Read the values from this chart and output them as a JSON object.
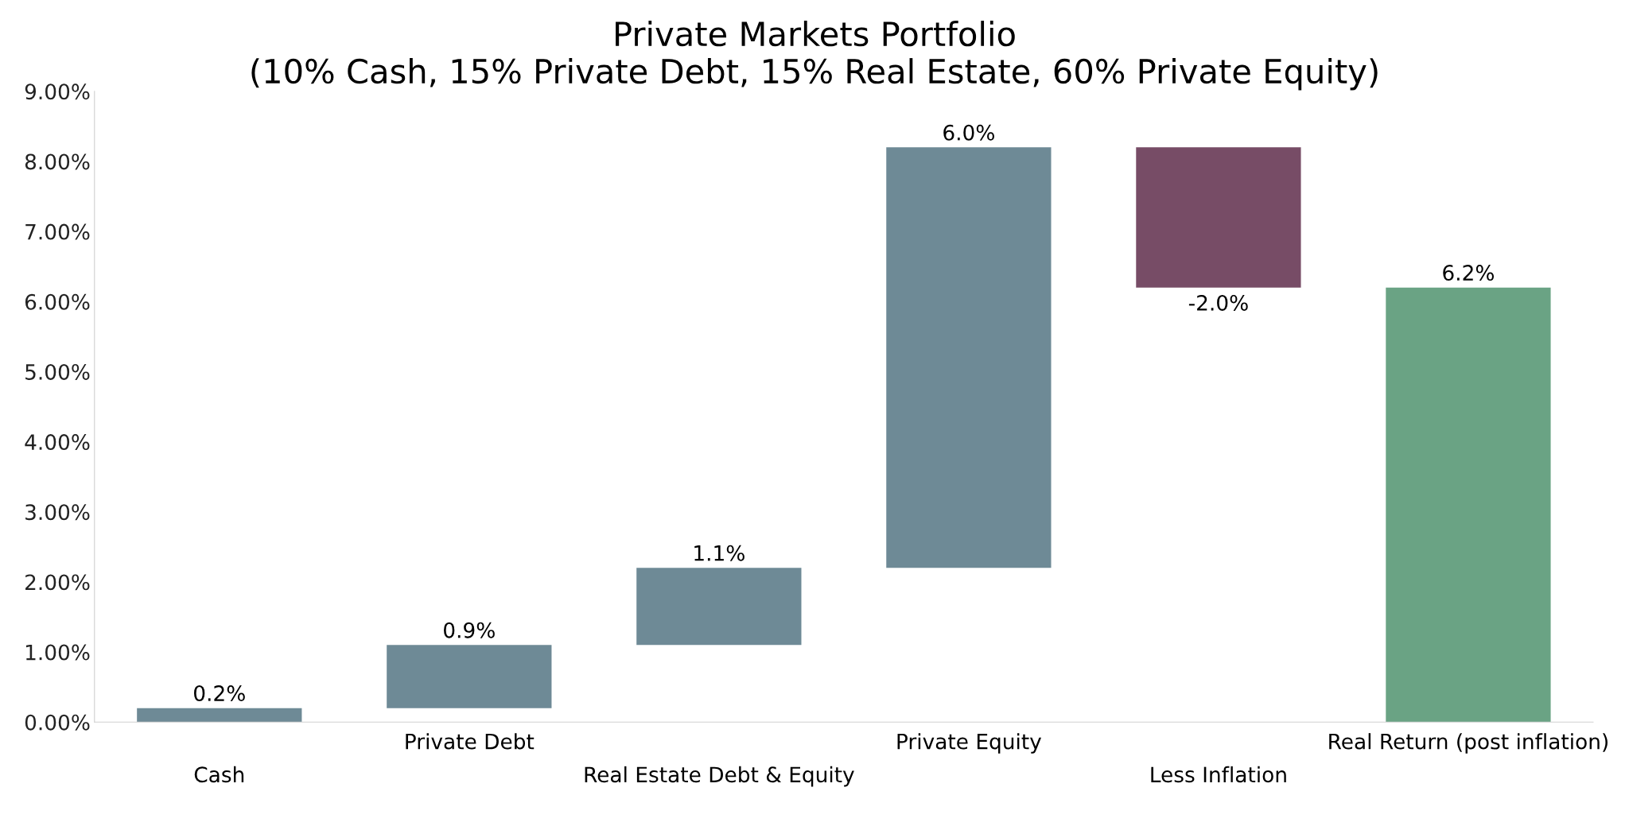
{
  "chart_data": {
    "type": "bar",
    "title": "Private Markets Portfolio",
    "subtitle": "(10% Cash, 15% Private Debt, 15% Real Estate, 60% Private Equity)",
    "categories": [
      "Cash",
      "Private Debt",
      "Real Estate Debt & Equity",
      "Private Equity",
      "Less Inflation",
      "Real Return (post inflation)"
    ],
    "values": [
      0.2,
      0.9,
      1.1,
      6.0,
      -2.0,
      6.2
    ],
    "base": [
      0,
      0.2,
      1.1,
      2.2,
      8.2,
      0
    ],
    "colors": [
      "#6e8a96",
      "#6e8a96",
      "#6e8a96",
      "#6e8a96",
      "#774c66",
      "#6aa384"
    ],
    "value_labels": [
      "0.2%",
      "0.9%",
      "1.1%",
      "6.0%",
      "-2.0%",
      "6.2%"
    ],
    "ylim": [
      0,
      9
    ],
    "yticks": [
      {
        "value": 0,
        "label": "0.00%"
      },
      {
        "value": 1,
        "label": "1.00%"
      },
      {
        "value": 2,
        "label": "2.00%"
      },
      {
        "value": 3,
        "label": "3.00%"
      },
      {
        "value": 4,
        "label": "4.00%"
      },
      {
        "value": 5,
        "label": "5.00%"
      },
      {
        "value": 6,
        "label": "6.00%"
      },
      {
        "value": 7,
        "label": "7.00%"
      },
      {
        "value": 8,
        "label": "8.00%"
      },
      {
        "value": 9,
        "label": "9.00%"
      }
    ],
    "grid": false
  }
}
